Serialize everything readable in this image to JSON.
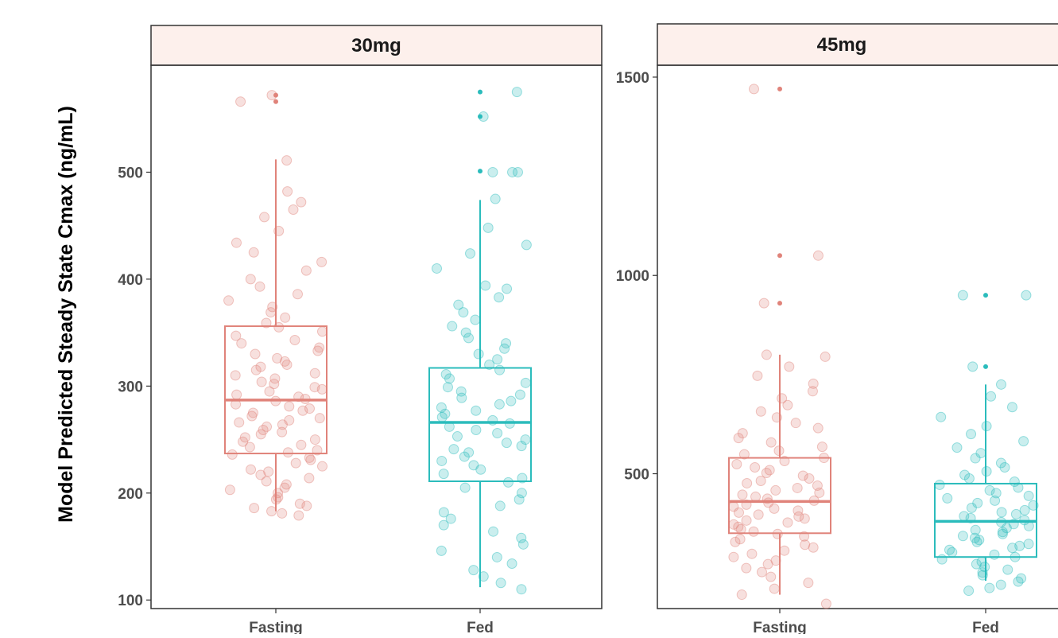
{
  "chart_data": {
    "type": "scatter",
    "subtype": "faceted box plot with jittered points",
    "ylabel": "Model Predicted Steady State Cmax (ng/mL)",
    "xlabel": "",
    "colors": {
      "Fasting": "#e0837a",
      "Fed": "#2bbcbc",
      "strip_fill": "#fdf0ec"
    },
    "legend": "none",
    "grid": false,
    "panels": [
      {
        "title": "30mg",
        "ylim": [
          92,
          600
        ],
        "yticks": [
          100,
          200,
          300,
          400,
          500
        ],
        "categories": [
          "Fasting",
          "Fed"
        ],
        "boxes": [
          {
            "group": "Fasting",
            "min": 183,
            "q1": 237,
            "median": 287,
            "q3": 356,
            "max": 512,
            "outliers": [
              566,
              572
            ]
          },
          {
            "group": "Fed",
            "min": 112,
            "q1": 211,
            "median": 266,
            "q3": 317,
            "max": 474,
            "outliers": [
              501,
              552,
              575
            ]
          }
        ],
        "points": {
          "Fasting": [
            179,
            181,
            183,
            186,
            188,
            190,
            194,
            196,
            200,
            203,
            205,
            208,
            211,
            214,
            217,
            220,
            222,
            225,
            228,
            231,
            233,
            236,
            238,
            240,
            243,
            245,
            248,
            250,
            252,
            255,
            257,
            259,
            262,
            264,
            266,
            268,
            270,
            272,
            275,
            277,
            279,
            281,
            283,
            286,
            288,
            290,
            292,
            295,
            297,
            299,
            302,
            304,
            307,
            310,
            312,
            315,
            318,
            320,
            323,
            326,
            330,
            333,
            336,
            340,
            343,
            347,
            351,
            355,
            359,
            364,
            369,
            374,
            380,
            386,
            393,
            400,
            408,
            416,
            425,
            434,
            445,
            458,
            465,
            472,
            482,
            511,
            566,
            572
          ],
          "Fed": [
            110,
            116,
            122,
            128,
            134,
            140,
            146,
            152,
            158,
            164,
            170,
            176,
            182,
            188,
            194,
            200,
            205,
            210,
            214,
            218,
            222,
            226,
            230,
            234,
            238,
            241,
            244,
            247,
            250,
            253,
            256,
            259,
            262,
            265,
            268,
            271,
            274,
            277,
            280,
            283,
            286,
            289,
            292,
            295,
            299,
            303,
            307,
            311,
            315,
            320,
            325,
            330,
            335,
            340,
            345,
            350,
            356,
            362,
            369,
            376,
            383,
            391,
            394,
            410,
            424,
            432,
            448,
            475,
            500,
            500,
            500,
            552,
            575
          ]
        }
      },
      {
        "title": "45mg",
        "ylim": [
          160,
          1530
        ],
        "yticks": [
          500,
          1000,
          1500
        ],
        "categories": [
          "Fasting",
          "Fed"
        ],
        "boxes": [
          {
            "group": "Fasting",
            "min": 195,
            "q1": 350,
            "median": 430,
            "q3": 540,
            "max": 800,
            "outliers": [
              930,
              1050,
              1470
            ]
          },
          {
            "group": "Fed",
            "min": 230,
            "q1": 290,
            "median": 380,
            "q3": 475,
            "max": 725,
            "outliers": [
              770,
              950
            ]
          }
        ],
        "points": {
          "Fasting": [
            172,
            195,
            210,
            225,
            240,
            252,
            262,
            272,
            281,
            290,
            298,
            306,
            314,
            321,
            328,
            335,
            342,
            348,
            354,
            360,
            366,
            372,
            377,
            382,
            387,
            392,
            397,
            402,
            407,
            412,
            417,
            422,
            427,
            432,
            437,
            442,
            447,
            452,
            458,
            464,
            470,
            476,
            482,
            488,
            495,
            502,
            509,
            516,
            524,
            532,
            540,
            549,
            558,
            568,
            579,
            590,
            602,
            615,
            628,
            642,
            657,
            673,
            690,
            708,
            727,
            747,
            770,
            795,
            800,
            930,
            1050,
            1470
          ],
          "Fed": [
            205,
            212,
            220,
            228,
            236,
            244,
            251,
            258,
            265,
            272,
            278,
            284,
            290,
            296,
            302,
            308,
            313,
            318,
            323,
            328,
            333,
            338,
            343,
            348,
            353,
            358,
            363,
            368,
            373,
            378,
            383,
            388,
            393,
            398,
            403,
            408,
            414,
            420,
            426,
            432,
            438,
            444,
            451,
            458,
            465,
            472,
            480,
            488,
            497,
            506,
            516,
            527,
            539,
            552,
            566,
            582,
            600,
            620,
            643,
            668,
            695,
            725,
            770,
            950,
            950
          ]
        }
      }
    ]
  }
}
